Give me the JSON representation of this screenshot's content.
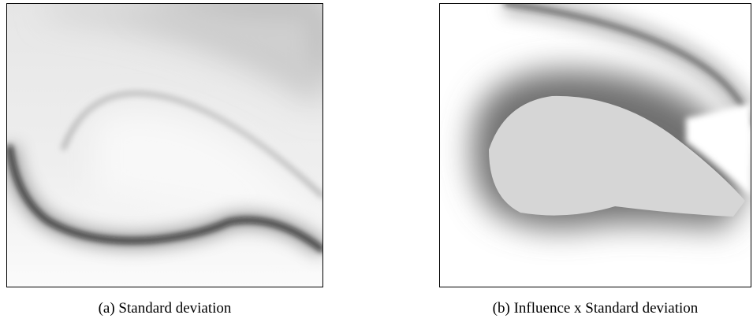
{
  "figures": [
    {
      "caption": "(a) Standard deviation"
    },
    {
      "caption": "(b) Influence x Standard deviation"
    }
  ]
}
